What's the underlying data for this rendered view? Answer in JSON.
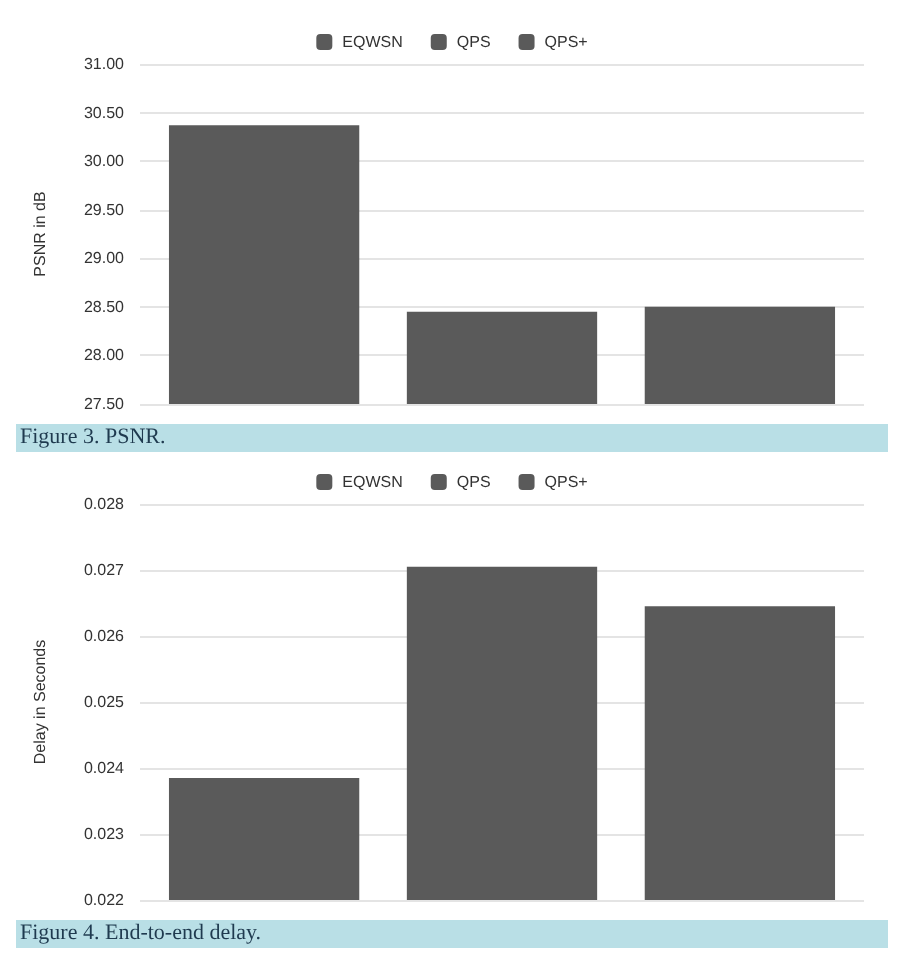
{
  "chart_data": [
    {
      "type": "bar",
      "categories": [
        null
      ],
      "ylabel": "PSNR in dB",
      "ylim": [
        27.5,
        31
      ],
      "yticks": [
        {
          "value": 27.5,
          "label": "27.50"
        },
        {
          "value": 28,
          "label": "28.00"
        },
        {
          "value": 28.5,
          "label": "28.50"
        },
        {
          "value": 29,
          "label": "29.00"
        },
        {
          "value": 29.5,
          "label": "29.50"
        },
        {
          "value": 30,
          "label": "30.00"
        },
        {
          "value": 30.5,
          "label": "30.50"
        },
        {
          "value": 31,
          "label": "31.00"
        }
      ],
      "grid": "y",
      "legend": "top",
      "annotations": [
        "Figure 3. PSNR."
      ],
      "series": [
        {
          "name": "EQWSN",
          "color": "#5a5a5a",
          "values": [
            30.37
          ]
        },
        {
          "name": "QPS",
          "color": "#5a5a5a",
          "values": [
            28.45
          ]
        },
        {
          "name": "QPS+",
          "color": "#5a5a5a",
          "values": [
            28.5
          ]
        }
      ]
    },
    {
      "type": "bar",
      "categories": [
        null
      ],
      "ylabel": "Delay in Seconds",
      "ylim": [
        0.022,
        0.028
      ],
      "yticks": [
        0.022,
        0.023,
        0.024,
        0.025,
        0.026,
        0.027,
        0.028
      ],
      "grid": "y",
      "legend": "top",
      "annotations": [
        "Figure 4. End-to-end delay."
      ],
      "series": [
        {
          "name": "EQWSN",
          "color": "#5a5a5a",
          "values": [
            0.02385
          ]
        },
        {
          "name": "QPS",
          "color": "#5a5a5a",
          "values": [
            0.02705
          ]
        },
        {
          "name": "QPS+",
          "color": "#5a5a5a",
          "values": [
            0.02645
          ]
        }
      ]
    }
  ]
}
